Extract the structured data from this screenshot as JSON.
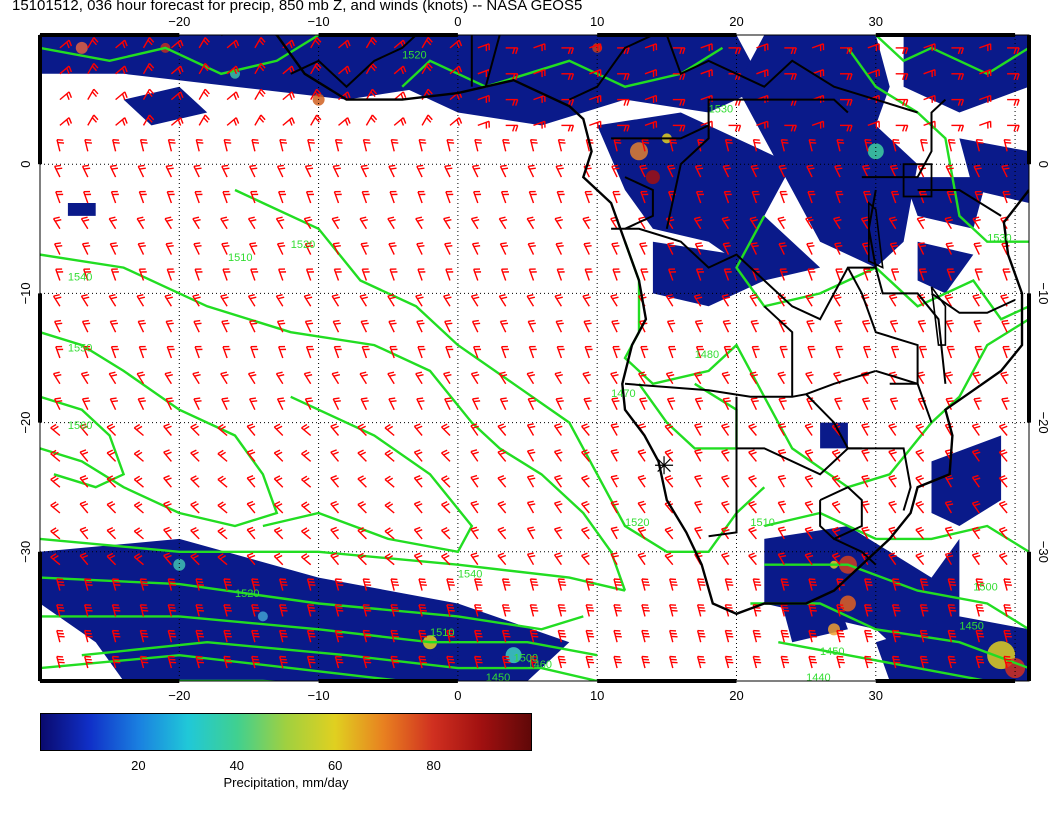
{
  "title": "15101512, 036 hour forecast for precip, 850 mb Z, and winds (knots) -- NASA GEOS5",
  "map": {
    "lon_range": [
      -30,
      41
    ],
    "lat_range": [
      -40,
      10
    ],
    "lon_ticks": [
      {
        "value": -20,
        "label": "−20"
      },
      {
        "value": -10,
        "label": "−10"
      },
      {
        "value": 0,
        "label": "0"
      },
      {
        "value": 10,
        "label": "10"
      },
      {
        "value": 20,
        "label": "20"
      },
      {
        "value": 30,
        "label": "30"
      }
    ],
    "lat_ticks": [
      {
        "value": 0,
        "label": "0"
      },
      {
        "value": -10,
        "label": "−10"
      },
      {
        "value": -20,
        "label": "−20"
      },
      {
        "value": -30,
        "label": "−30"
      }
    ],
    "contour_labels": [
      {
        "text": "1520",
        "lon": -4,
        "lat": 8.2
      },
      {
        "text": "1530",
        "lon": 18,
        "lat": 4
      },
      {
        "text": "1510",
        "lon": -16.5,
        "lat": -7.5
      },
      {
        "text": "1540",
        "lon": -28,
        "lat": -9
      },
      {
        "text": "1550",
        "lon": -28,
        "lat": -14.5
      },
      {
        "text": "1560",
        "lon": -28,
        "lat": -20.5
      },
      {
        "text": "1520",
        "lon": -12,
        "lat": -6.5
      },
      {
        "text": "1480",
        "lon": 17,
        "lat": -15
      },
      {
        "text": "1470",
        "lon": 11,
        "lat": -18
      },
      {
        "text": "1520",
        "lon": 12,
        "lat": -28
      },
      {
        "text": "1510",
        "lon": 21,
        "lat": -28
      },
      {
        "text": "1530",
        "lon": 38,
        "lat": -6
      },
      {
        "text": "1540",
        "lon": 0,
        "lat": -32
      },
      {
        "text": "1520",
        "lon": -16,
        "lat": -33.5
      },
      {
        "text": "1510",
        "lon": -2,
        "lat": -36.5
      },
      {
        "text": "1500",
        "lon": 4,
        "lat": -38.5
      },
      {
        "text": "1460",
        "lon": 5,
        "lat": -39
      },
      {
        "text": "1450",
        "lon": 2,
        "lat": -40
      },
      {
        "text": "1500",
        "lon": 37,
        "lat": -33
      },
      {
        "text": "1450",
        "lon": 36,
        "lat": -36
      },
      {
        "text": "1450",
        "lon": 26,
        "lat": -38
      },
      {
        "text": "1440",
        "lon": 25,
        "lat": -40
      }
    ],
    "colors": {
      "precip_low": "#0a1a8a",
      "contour": "#22dd22",
      "barb": "#ff0000",
      "coast": "#000000"
    }
  },
  "colorbar": {
    "title": "Precipitation, mm/day",
    "range": [
      0,
      100
    ],
    "ticks": [
      {
        "value": 20,
        "label": "20"
      },
      {
        "value": 40,
        "label": "40"
      },
      {
        "value": 60,
        "label": "60"
      },
      {
        "value": 80,
        "label": "80"
      }
    ],
    "gradient": [
      "#0a0a6e",
      "#1030c8",
      "#1a80e0",
      "#20c8d8",
      "#40d090",
      "#a0d040",
      "#e0d020",
      "#e88020",
      "#d03020",
      "#a01010",
      "#600808"
    ]
  }
}
